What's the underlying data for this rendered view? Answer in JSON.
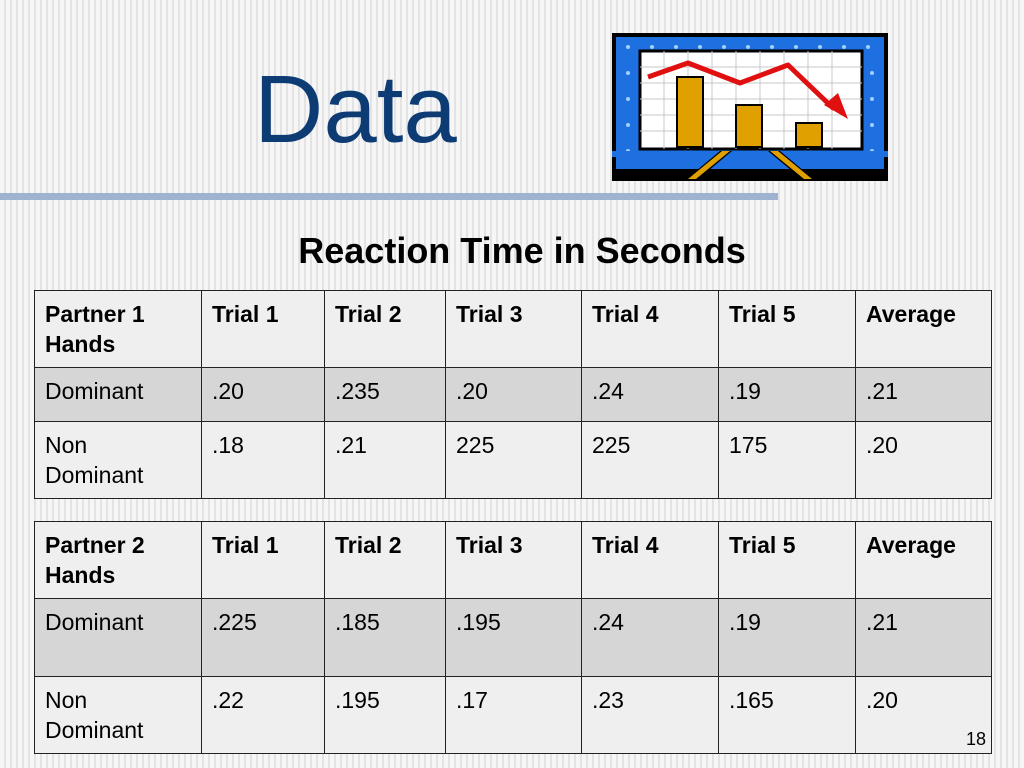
{
  "slide": {
    "title": "Data",
    "subtitle": "Reaction Time in Seconds",
    "page_number": "18",
    "clipart_icon": "chart-presentation-icon"
  },
  "tables": [
    {
      "header": [
        "Partner  1 Hands",
        "Trial 1",
        "Trial 2",
        "Trial 3",
        "Trial 4",
        "Trial 5",
        "Average"
      ],
      "rows": [
        [
          "Dominant",
          ".20",
          ".235",
          ".20",
          ".24",
          ".19",
          ".21"
        ],
        [
          "Non Dominant",
          ".18",
          ".21",
          "225",
          "225",
          "175",
          ".20"
        ]
      ]
    },
    {
      "header": [
        "Partner 2 Hands",
        "Trial 1",
        "Trial 2",
        "Trial 3",
        "Trial 4",
        "Trial 5",
        "Average"
      ],
      "rows": [
        [
          "Dominant",
          ".225",
          ".185",
          ".195",
          ".24",
          ".19",
          ".21"
        ],
        [
          "Non Dominant",
          ".22",
          ".195",
          ".17",
          ".23",
          ".165",
          ".20"
        ]
      ]
    }
  ],
  "colors": {
    "title": "#0d3b73",
    "divider": "#9db3cf",
    "shaded_row": "#d6d6d6"
  }
}
